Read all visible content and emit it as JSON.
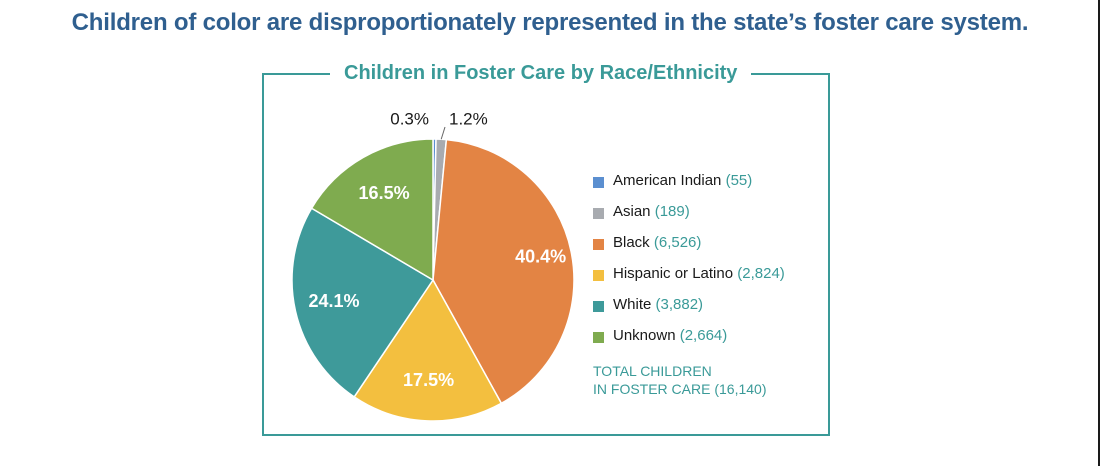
{
  "headline": "Children of color are disproportionately represented in the state’s foster care system.",
  "chart_data": {
    "type": "pie",
    "title": "Children in Foster Care by Race/Ethnicity",
    "slices": [
      {
        "label": "American Indian",
        "count": "(55)",
        "value": 55,
        "pct_label": "0.3%",
        "color": "#5b8fd0"
      },
      {
        "label": "Asian",
        "count": "(189)",
        "value": 189,
        "pct_label": "1.2%",
        "color": "#a8abb0"
      },
      {
        "label": "Black",
        "count": "(6,526)",
        "value": 6526,
        "pct_label": "40.4%",
        "color": "#e38444"
      },
      {
        "label": "Hispanic or Latino",
        "count": "(2,824)",
        "value": 2824,
        "pct_label": "17.5%",
        "color": "#f3bf3f"
      },
      {
        "label": "White",
        "count": "(3,882)",
        "value": 3882,
        "pct_label": "24.1%",
        "color": "#3e9a9a"
      },
      {
        "label": "Unknown",
        "count": "(2,664)",
        "value": 2664,
        "pct_label": "16.5%",
        "color": "#7fab4f"
      }
    ],
    "total_line1": "TOTAL CHILDREN",
    "total_line2": "IN FOSTER CARE (16,140)",
    "total_value": 16140,
    "legend_position": "right"
  }
}
